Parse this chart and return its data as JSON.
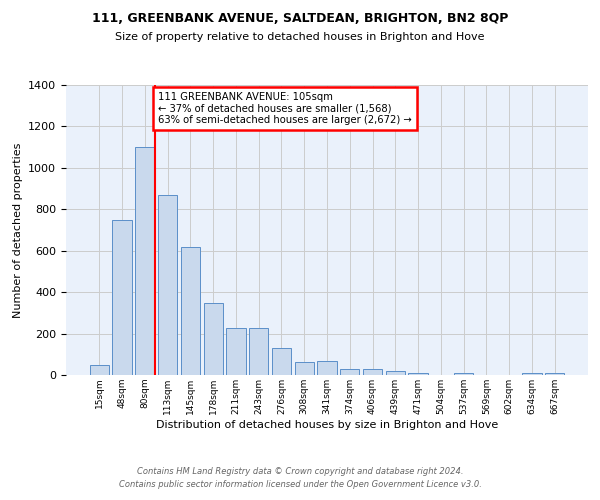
{
  "title": "111, GREENBANK AVENUE, SALTDEAN, BRIGHTON, BN2 8QP",
  "subtitle": "Size of property relative to detached houses in Brighton and Hove",
  "xlabel": "Distribution of detached houses by size in Brighton and Hove",
  "ylabel": "Number of detached properties",
  "bar_labels": [
    "15sqm",
    "48sqm",
    "80sqm",
    "113sqm",
    "145sqm",
    "178sqm",
    "211sqm",
    "243sqm",
    "276sqm",
    "308sqm",
    "341sqm",
    "374sqm",
    "406sqm",
    "439sqm",
    "471sqm",
    "504sqm",
    "537sqm",
    "569sqm",
    "602sqm",
    "634sqm",
    "667sqm"
  ],
  "bar_values": [
    50,
    750,
    1100,
    870,
    620,
    350,
    225,
    225,
    130,
    65,
    70,
    30,
    28,
    18,
    12,
    0,
    10,
    0,
    0,
    10,
    10
  ],
  "bar_color": "#c9d9ed",
  "bar_edge_color": "#5b8fc9",
  "grid_color": "#cccccc",
  "bg_color": "#eaf1fb",
  "red_line_index": 2,
  "annotation_text": "111 GREENBANK AVENUE: 105sqm\n← 37% of detached houses are smaller (1,568)\n63% of semi-detached houses are larger (2,672) →",
  "annotation_box_color": "white",
  "annotation_box_edge": "red",
  "ylim": [
    0,
    1400
  ],
  "yticks": [
    0,
    200,
    400,
    600,
    800,
    1000,
    1200,
    1400
  ],
  "footnote1": "Contains HM Land Registry data © Crown copyright and database right 2024.",
  "footnote2": "Contains public sector information licensed under the Open Government Licence v3.0."
}
